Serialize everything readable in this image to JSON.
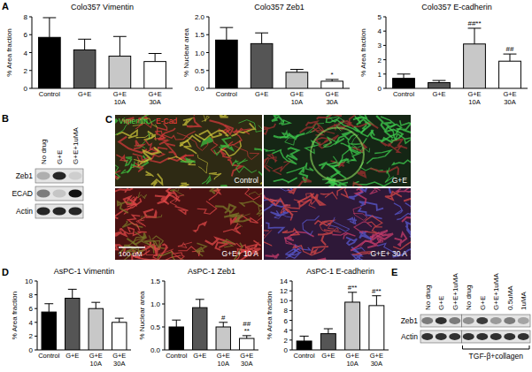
{
  "panel_labels": [
    "A",
    "B",
    "C",
    "D",
    "E"
  ],
  "chart_data": [
    {
      "type": "bar",
      "title": "Colo357 Vimentin",
      "y_label": "% Area fraction",
      "categories": [
        "Control",
        "G+E",
        "G+E\n10A",
        "G+E\n30A"
      ],
      "values": [
        5.7,
        4.3,
        3.6,
        3.0
      ],
      "errors": [
        2.2,
        1.2,
        2.2,
        0.9
      ],
      "colors": [
        "#000000",
        "#555555",
        "#c8c8c8",
        "#ffffff"
      ],
      "ylim": [
        0,
        8
      ],
      "yticks": [
        0,
        2,
        4,
        6,
        8
      ],
      "annotations": [
        null,
        null,
        null,
        null
      ]
    },
    {
      "type": "bar",
      "title": "Colo357 Zeb1",
      "y_label": "% Nuclear area",
      "categories": [
        "Control",
        "G+E",
        "G+E\n10A",
        "G+E\n30A"
      ],
      "values": [
        1.35,
        1.25,
        0.45,
        0.2
      ],
      "errors": [
        0.35,
        0.3,
        0.08,
        0.05
      ],
      "colors": [
        "#000000",
        "#555555",
        "#c8c8c8",
        "#ffffff"
      ],
      "ylim": [
        0,
        2
      ],
      "yticks": [
        {
          "value": 0,
          "label": "0.0"
        },
        0.5,
        {
          "value": 1,
          "label": "1.0"
        },
        1.5,
        {
          "value": 2,
          "label": "2.0"
        }
      ],
      "annotations": [
        null,
        null,
        null,
        "*"
      ]
    },
    {
      "type": "bar",
      "title": "Colo357 E-cadherin",
      "y_label": "% Area fraction",
      "categories": [
        "Control",
        "G+E",
        "G+E\n10A",
        "G+E\n30A"
      ],
      "values": [
        0.7,
        0.4,
        3.1,
        1.9
      ],
      "errors": [
        0.3,
        0.15,
        1.1,
        0.5
      ],
      "colors": [
        "#000000",
        "#555555",
        "#c8c8c8",
        "#ffffff"
      ],
      "ylim": [
        0,
        5
      ],
      "yticks": [
        0,
        1,
        2,
        3,
        4,
        5
      ],
      "annotations": [
        null,
        null,
        "##**",
        "##"
      ]
    },
    {
      "type": "bar",
      "title": "AsPC-1 Vimentin",
      "y_label": "% Area fraction",
      "categories": [
        "Control",
        "G+E",
        "G+E\n10A",
        "G+E\n30A"
      ],
      "values": [
        5.5,
        7.5,
        6.0,
        4.0
      ],
      "errors": [
        1.2,
        1.3,
        0.9,
        0.6
      ],
      "colors": [
        "#000000",
        "#555555",
        "#c8c8c8",
        "#ffffff"
      ],
      "ylim": [
        0,
        10
      ],
      "yticks": [
        0,
        2,
        4,
        6,
        8,
        10
      ],
      "annotations": [
        null,
        null,
        null,
        null
      ]
    },
    {
      "type": "bar",
      "title": "AsPC-1 Zeb1",
      "y_label": "% Nuclear area",
      "categories": [
        "Control",
        "G+E",
        "G+E\n10A",
        "G+E\n30A"
      ],
      "values": [
        0.5,
        0.92,
        0.5,
        0.25
      ],
      "errors": [
        0.15,
        0.18,
        0.1,
        0.06
      ],
      "colors": [
        "#000000",
        "#555555",
        "#c8c8c8",
        "#ffffff"
      ],
      "ylim": [
        0,
        1.5
      ],
      "yticks": [
        {
          "value": 0,
          "label": "0.0"
        },
        0.5,
        {
          "value": 1,
          "label": "1.0"
        },
        1.5
      ],
      "annotations": [
        null,
        null,
        "#",
        "##\n**"
      ]
    },
    {
      "type": "bar",
      "title": "AsPC-1 E-cadherin",
      "y_label": "% Area fraction",
      "categories": [
        "Control",
        "G+E",
        "G+E\n10A",
        "G+E\n30A"
      ],
      "values": [
        1.8,
        3.3,
        9.7,
        9.0
      ],
      "errors": [
        1.0,
        1.0,
        2.0,
        2.0
      ],
      "colors": [
        "#000000",
        "#555555",
        "#c8c8c8",
        "#ffffff"
      ],
      "ylim": [
        0,
        14
      ],
      "yticks": [
        0,
        2,
        4,
        6,
        8,
        10,
        12,
        14
      ],
      "annotations": [
        null,
        null,
        "#**",
        "#**"
      ]
    }
  ],
  "blots": [
    {
      "lanes": [
        "No drug",
        "G+E",
        "G+E+1uMA"
      ],
      "rows": [
        "Zeb1",
        "ECAD",
        "Actin"
      ]
    },
    {
      "lanes": [
        "No drug",
        "G+E",
        "G+E+1uMA",
        "No drug",
        "G+E",
        "G+E+1uMA",
        "0.5uMA",
        "1uMA"
      ],
      "rows": [
        "Zeb1",
        "Actin"
      ],
      "group_label": "TGF-β+collagen"
    }
  ],
  "micrograph": {
    "stains": [
      "Vimentin",
      "E-Cad"
    ],
    "panels": [
      "Control",
      "G+E",
      "G+E+ 10 A",
      "G+E+ 30 A"
    ],
    "scale_bar": "100 uM"
  }
}
